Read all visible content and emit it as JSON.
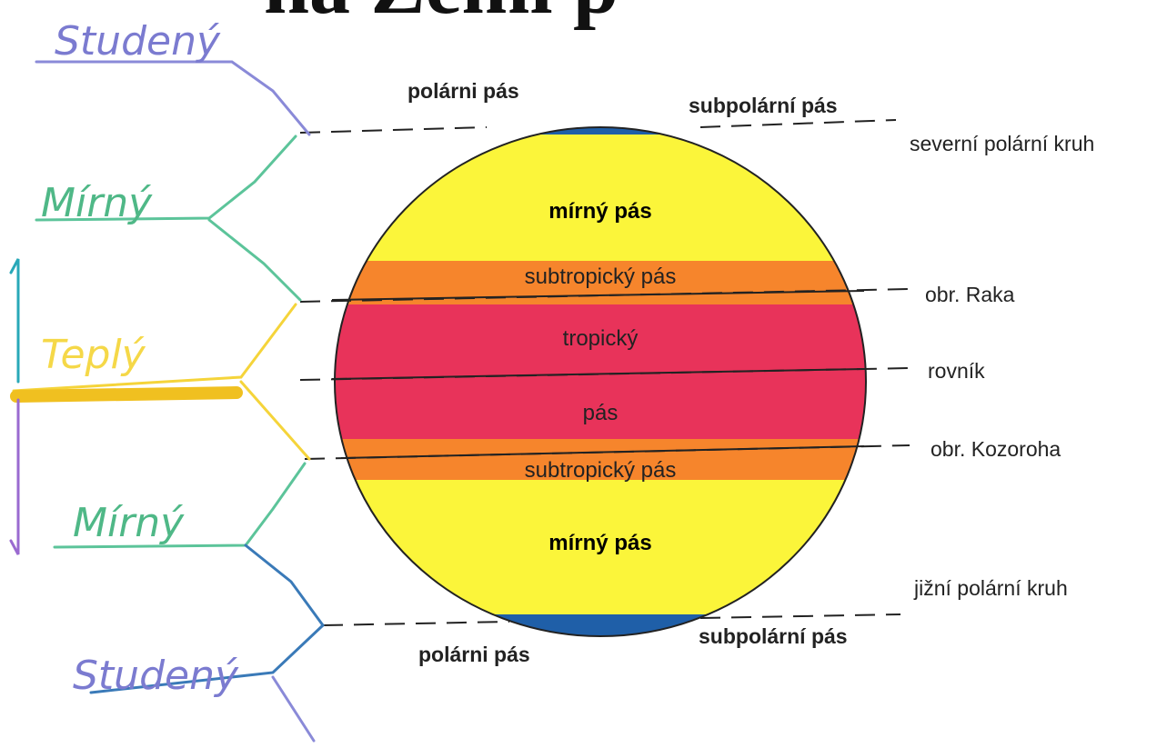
{
  "title": "na Zemi p",
  "left_labels": [
    "Studený",
    "Mírný",
    "Teplý",
    "Mírný",
    "Studený"
  ],
  "globe_labels": [
    "mírný pás",
    "subtropický pás",
    "tropický",
    "pás",
    "subtropický pás",
    "mírný pás"
  ],
  "outer_labels": [
    "polárni pás",
    "subpolární pás",
    "severní polární kruh",
    "obr. Raka",
    "rovník",
    "obr. Kozoroha",
    "jižní polární kruh",
    "polárni pás",
    "subpolární pás"
  ]
}
